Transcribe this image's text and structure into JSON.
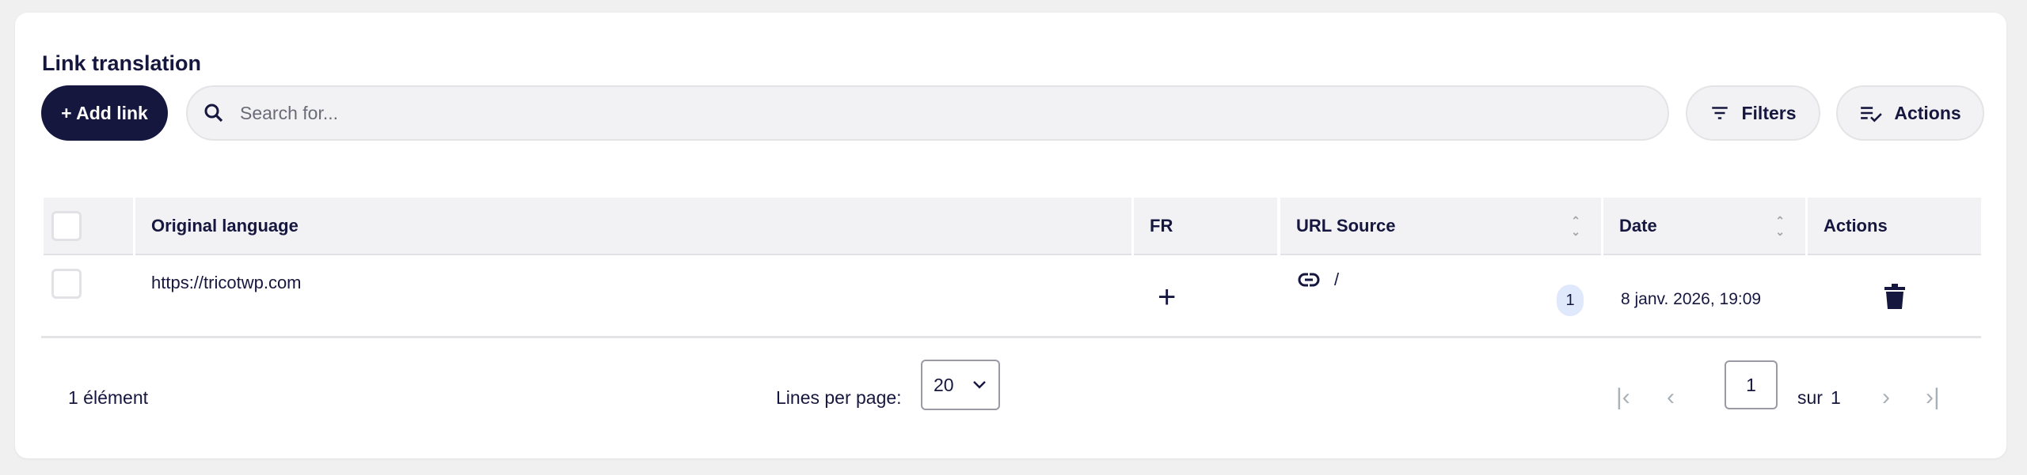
{
  "title": "Link translation",
  "toolbar": {
    "add_label": "+ Add link",
    "search_placeholder": "Search for...",
    "search_value": "",
    "filters_label": "Filters",
    "actions_label": "Actions"
  },
  "table": {
    "columns": [
      "Original language",
      "FR",
      "URL Source",
      "Date",
      "Actions"
    ],
    "rows": [
      {
        "original": "https://tricotwp.com",
        "fr": "+",
        "url_source": "/",
        "count": "1",
        "date": "8 janv. 2026, 19:09"
      }
    ]
  },
  "footer": {
    "count_label": "1 élément",
    "lines_per_page_label": "Lines per page:",
    "lines_per_page_value": "20",
    "page_value": "1",
    "of_label": "sur",
    "total_pages": "1"
  },
  "colors": {
    "primary": "#16173f",
    "badge": "#dfe9fb",
    "header_bg": "#f2f2f4"
  }
}
